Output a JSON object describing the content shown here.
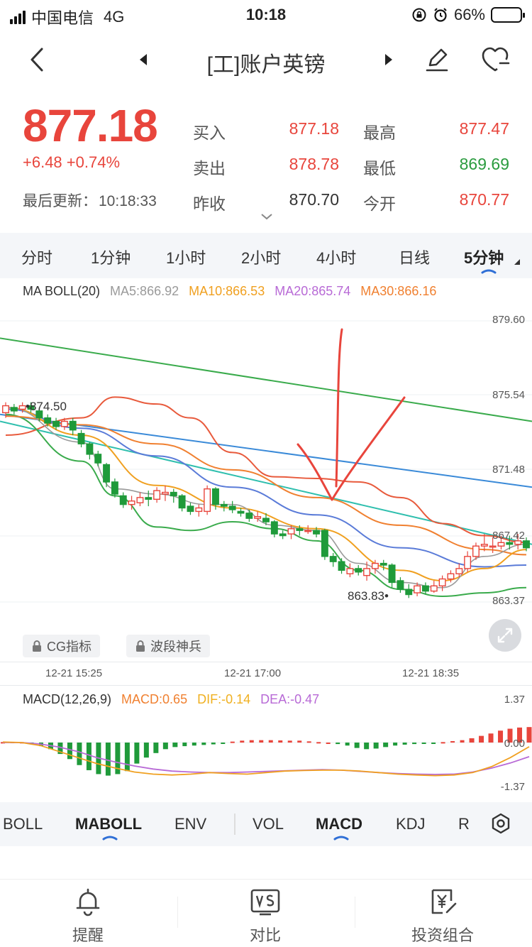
{
  "status": {
    "carrier": "中国电信",
    "network": "4G",
    "time": "10:18",
    "battery": "66%",
    "battery_level": 0.66
  },
  "nav": {
    "title": "[工]账户英镑"
  },
  "quote": {
    "price": "877.18",
    "change": "+6.48",
    "change_pct": "+0.74%",
    "updated_label": "最后更新：",
    "updated_time": "10:18:33",
    "buy_label": "买入",
    "buy": "877.18",
    "sell_label": "卖出",
    "sell": "878.78",
    "prev_close_label": "昨收",
    "prev_close": "870.70",
    "high_label": "最高",
    "high": "877.47",
    "low_label": "最低",
    "low": "869.69",
    "open_label": "今开",
    "open": "870.77"
  },
  "periods": [
    "分时",
    "1分钟",
    "1小时",
    "2小时",
    "4小时",
    "日线",
    "5分钟"
  ],
  "active_period": "5分钟",
  "main_indicator": {
    "name": "MA BOLL(20)",
    "ma5": "MA5:866.92",
    "ma10": "MA10:866.53",
    "ma20": "MA20:865.74",
    "ma30": "MA30:866.16"
  },
  "locked_indicators": [
    "CG指标",
    "波段神兵"
  ],
  "macd_indicator": {
    "name": "MACD(12,26,9)",
    "macd": "MACD:0.65",
    "dif": "DIF:-0.14",
    "dea": "DEA:-0.47"
  },
  "indicator_tabs": [
    "BOLL",
    "MABOLL",
    "ENV",
    "VOL",
    "MACD",
    "KDJ",
    "R"
  ],
  "active_tabs": [
    "MABOLL",
    "MACD"
  ],
  "bottom_nav": [
    "提醒",
    "对比",
    "投资组合"
  ],
  "chart_data": [
    {
      "type": "candlestick",
      "y_ticks": [
        "879.60",
        "875.54",
        "871.48",
        "867.42",
        "863.37"
      ],
      "x_ticks": [
        "12-21 15:25",
        "12-21 17:00",
        "12-21 18:35"
      ],
      "annotations": [
        "874.50",
        "863.83"
      ],
      "ylim": [
        863.37,
        879.6
      ],
      "colors": {
        "up": "#e8453c",
        "down": "#1f9a3a",
        "ma5": "#9a9a9a",
        "ma10": "#f0a020",
        "ma20": "#b86ad6",
        "ma30": "#f08030",
        "boll_upper": "#e85a3c",
        "boll_lower": "#3aab4c",
        "long_a": "#3aab4c",
        "long_b": "#3a8ad8",
        "long_c": "#2fbfae"
      },
      "candles": [
        {
          "o": 874.3,
          "c": 874.7,
          "h": 874.9,
          "l": 874.0
        },
        {
          "o": 874.6,
          "c": 874.4,
          "h": 874.8,
          "l": 874.2
        },
        {
          "o": 874.5,
          "c": 874.7,
          "h": 874.9,
          "l": 874.3
        },
        {
          "o": 874.7,
          "c": 874.5,
          "h": 874.9,
          "l": 874.3
        },
        {
          "o": 874.4,
          "c": 874.0,
          "h": 874.6,
          "l": 873.8
        },
        {
          "o": 874.0,
          "c": 873.7,
          "h": 874.2,
          "l": 873.5
        },
        {
          "o": 873.8,
          "c": 873.5,
          "h": 874.0,
          "l": 873.3
        },
        {
          "o": 873.5,
          "c": 873.8,
          "h": 874.0,
          "l": 873.3
        },
        {
          "o": 873.8,
          "c": 873.3,
          "h": 874.0,
          "l": 873.0
        },
        {
          "o": 873.1,
          "c": 872.5,
          "h": 873.3,
          "l": 872.3
        },
        {
          "o": 872.5,
          "c": 871.9,
          "h": 872.6,
          "l": 871.6
        },
        {
          "o": 871.9,
          "c": 871.4,
          "h": 872.1,
          "l": 871.2
        },
        {
          "o": 871.3,
          "c": 870.3,
          "h": 871.4,
          "l": 870.0
        },
        {
          "o": 870.3,
          "c": 869.6,
          "h": 870.5,
          "l": 869.4
        },
        {
          "o": 869.5,
          "c": 869.0,
          "h": 869.7,
          "l": 868.8
        },
        {
          "o": 869.0,
          "c": 869.2,
          "h": 869.5,
          "l": 868.7
        },
        {
          "o": 869.1,
          "c": 869.4,
          "h": 869.7,
          "l": 868.9
        },
        {
          "o": 869.4,
          "c": 869.3,
          "h": 869.8,
          "l": 868.9
        },
        {
          "o": 869.3,
          "c": 869.8,
          "h": 870.0,
          "l": 869.1
        },
        {
          "o": 869.6,
          "c": 869.7,
          "h": 870.1,
          "l": 869.2
        },
        {
          "o": 869.7,
          "c": 869.5,
          "h": 869.9,
          "l": 869.1
        },
        {
          "o": 869.5,
          "c": 868.8,
          "h": 869.6,
          "l": 868.6
        },
        {
          "o": 868.9,
          "c": 868.6,
          "h": 869.1,
          "l": 868.4
        },
        {
          "o": 868.6,
          "c": 868.8,
          "h": 869.0,
          "l": 868.3
        },
        {
          "o": 868.6,
          "c": 869.9,
          "h": 870.1,
          "l": 868.4
        },
        {
          "o": 869.9,
          "c": 869.0,
          "h": 870.0,
          "l": 868.7
        },
        {
          "o": 869.0,
          "c": 868.9,
          "h": 869.2,
          "l": 868.6
        },
        {
          "o": 868.9,
          "c": 868.7,
          "h": 869.2,
          "l": 868.5
        },
        {
          "o": 868.6,
          "c": 868.5,
          "h": 868.8,
          "l": 868.3
        },
        {
          "o": 868.5,
          "c": 868.2,
          "h": 868.7,
          "l": 868.0
        },
        {
          "o": 868.2,
          "c": 868.3,
          "h": 868.6,
          "l": 868.0
        },
        {
          "o": 868.2,
          "c": 868.0,
          "h": 868.5,
          "l": 867.8
        },
        {
          "o": 868.0,
          "c": 867.3,
          "h": 868.1,
          "l": 867.1
        },
        {
          "o": 867.3,
          "c": 867.2,
          "h": 867.5,
          "l": 867.0
        },
        {
          "o": 867.3,
          "c": 867.6,
          "h": 867.8,
          "l": 867.0
        },
        {
          "o": 867.6,
          "c": 867.5,
          "h": 867.8,
          "l": 867.2
        },
        {
          "o": 867.5,
          "c": 867.5,
          "h": 867.8,
          "l": 867.3
        },
        {
          "o": 867.5,
          "c": 867.3,
          "h": 867.7,
          "l": 867.1
        },
        {
          "o": 867.5,
          "c": 866.0,
          "h": 867.6,
          "l": 865.8
        },
        {
          "o": 866.0,
          "c": 865.7,
          "h": 866.2,
          "l": 865.4
        },
        {
          "o": 865.7,
          "c": 865.2,
          "h": 865.9,
          "l": 865.0
        },
        {
          "o": 865.0,
          "c": 865.3,
          "h": 865.6,
          "l": 864.8
        },
        {
          "o": 865.3,
          "c": 865.1,
          "h": 865.5,
          "l": 864.9
        },
        {
          "o": 864.9,
          "c": 865.3,
          "h": 865.7,
          "l": 864.6
        },
        {
          "o": 865.3,
          "c": 865.6,
          "h": 865.8,
          "l": 865.0
        },
        {
          "o": 865.6,
          "c": 865.5,
          "h": 865.8,
          "l": 865.2
        },
        {
          "o": 865.5,
          "c": 864.5,
          "h": 865.6,
          "l": 864.2
        },
        {
          "o": 864.6,
          "c": 864.1,
          "h": 864.8,
          "l": 863.9
        },
        {
          "o": 864.1,
          "c": 863.8,
          "h": 864.4,
          "l": 863.6
        },
        {
          "o": 863.9,
          "c": 864.3,
          "h": 864.5,
          "l": 863.7
        },
        {
          "o": 864.3,
          "c": 864.0,
          "h": 864.5,
          "l": 863.8
        },
        {
          "o": 864.0,
          "c": 864.3,
          "h": 864.6,
          "l": 863.9
        },
        {
          "o": 864.3,
          "c": 864.7,
          "h": 864.9,
          "l": 864.0
        },
        {
          "o": 864.7,
          "c": 865.0,
          "h": 865.2,
          "l": 864.5
        },
        {
          "o": 865.0,
          "c": 865.3,
          "h": 865.6,
          "l": 864.8
        },
        {
          "o": 865.3,
          "c": 866.0,
          "h": 866.3,
          "l": 865.1
        },
        {
          "o": 866.0,
          "c": 866.6,
          "h": 866.8,
          "l": 865.8
        },
        {
          "o": 866.6,
          "c": 866.7,
          "h": 867.3,
          "l": 866.3
        },
        {
          "o": 866.6,
          "c": 866.6,
          "h": 867.1,
          "l": 866.2
        },
        {
          "o": 866.6,
          "c": 866.8,
          "h": 867.2,
          "l": 866.4
        },
        {
          "o": 866.8,
          "c": 866.7,
          "h": 867.2,
          "l": 866.4
        },
        {
          "o": 866.7,
          "c": 866.9,
          "h": 867.3,
          "l": 866.4
        },
        {
          "o": 866.9,
          "c": 866.5,
          "h": 867.1,
          "l": 866.3
        }
      ],
      "lines": {
        "long_a": [
          878.6,
          873.8
        ],
        "long_b": [
          874.2,
          870.0
        ],
        "long_c": [
          873.8,
          866.7
        ],
        "boll_upper": [
          [
            0,
            873.0
          ],
          [
            9,
            874.0
          ],
          [
            13,
            875.2
          ],
          [
            18,
            874.8
          ],
          [
            22,
            874.0
          ],
          [
            27,
            872.0
          ],
          [
            32,
            870.6
          ],
          [
            37,
            870.5
          ],
          [
            42,
            870.3
          ],
          [
            47,
            869.4
          ],
          [
            52,
            867.9
          ],
          [
            57,
            867.2
          ],
          [
            62,
            866.8
          ]
        ],
        "boll_lower": [
          [
            0,
            874.2
          ],
          [
            9,
            871.5
          ],
          [
            13,
            869.5
          ],
          [
            18,
            867.7
          ],
          [
            22,
            867.5
          ],
          [
            27,
            868.0
          ],
          [
            32,
            867.6
          ],
          [
            37,
            866.9
          ],
          [
            42,
            865.2
          ],
          [
            47,
            864.1
          ],
          [
            52,
            863.7
          ],
          [
            57,
            863.9
          ],
          [
            62,
            864.2
          ]
        ],
        "ma30": [
          [
            0,
            874.1
          ],
          [
            9,
            873.6
          ],
          [
            18,
            872.5
          ],
          [
            27,
            871.0
          ],
          [
            37,
            869.4
          ],
          [
            47,
            867.8
          ],
          [
            57,
            866.4
          ],
          [
            62,
            866.1
          ]
        ],
        "ma20": [
          [
            0,
            874.5
          ],
          [
            9,
            873.4
          ],
          [
            18,
            871.8
          ],
          [
            27,
            870.0
          ],
          [
            37,
            868.4
          ],
          [
            47,
            866.5
          ],
          [
            57,
            865.4
          ],
          [
            62,
            865.5
          ]
        ],
        "ma10": [
          [
            0,
            874.6
          ],
          [
            9,
            873.0
          ],
          [
            18,
            870.1
          ],
          [
            27,
            868.8
          ],
          [
            37,
            867.6
          ],
          [
            47,
            865.2
          ],
          [
            52,
            864.6
          ],
          [
            57,
            865.3
          ],
          [
            62,
            866.4
          ]
        ],
        "ma5": [
          [
            0,
            874.6
          ],
          [
            9,
            872.6
          ],
          [
            13,
            869.9
          ],
          [
            18,
            869.6
          ],
          [
            24,
            869.0
          ],
          [
            27,
            869.0
          ],
          [
            32,
            867.8
          ],
          [
            37,
            867.5
          ],
          [
            42,
            865.6
          ],
          [
            47,
            864.5
          ],
          [
            52,
            864.2
          ],
          [
            57,
            866.0
          ],
          [
            62,
            866.7
          ]
        ]
      }
    },
    {
      "type": "bar",
      "title": "MACD(12,26,9)",
      "y_ticks": [
        "1.37",
        "0.00",
        "-1.37"
      ],
      "ylim": [
        -1.37,
        1.37
      ],
      "histogram": [
        0.02,
        0.03,
        0.02,
        -0.05,
        -0.12,
        -0.22,
        -0.38,
        -0.55,
        -0.75,
        -0.92,
        -1.05,
        -1.1,
        -1.05,
        -0.95,
        -0.7,
        -0.5,
        -0.35,
        -0.22,
        -0.15,
        -0.12,
        -0.1,
        -0.08,
        -0.06,
        -0.02,
        0.04,
        0.08,
        0.1,
        0.1,
        0.1,
        0.09,
        0.08,
        0.08,
        0.05,
        0.02,
        0.0,
        -0.05,
        -0.1,
        -0.18,
        -0.22,
        -0.2,
        -0.15,
        -0.1,
        -0.07,
        -0.05,
        -0.04,
        -0.02,
        0.02,
        0.06,
        0.1,
        0.18,
        0.28,
        0.38,
        0.5,
        0.58,
        0.63,
        0.65
      ],
      "dif": [
        0.02,
        0.0,
        -0.1,
        -0.3,
        -0.5,
        -0.7,
        -0.85,
        -0.98,
        -1.05,
        -1.08,
        -1.05,
        -1.0,
        -1.03,
        -1.05,
        -1.0,
        -0.95,
        -0.93,
        -0.92,
        -0.92,
        -0.95,
        -1.0,
        -1.05,
        -1.08,
        -1.1,
        -1.08,
        -1.0,
        -0.8,
        -0.5,
        -0.14
      ],
      "dea": [
        0.0,
        0.0,
        -0.05,
        -0.15,
        -0.3,
        -0.5,
        -0.65,
        -0.78,
        -0.88,
        -0.95,
        -0.98,
        -1.0,
        -1.0,
        -0.98,
        -0.96,
        -0.94,
        -0.92,
        -0.9,
        -0.92,
        -0.96,
        -1.0,
        -1.03,
        -1.05,
        -1.06,
        -1.05,
        -0.98,
        -0.85,
        -0.68,
        -0.47
      ]
    }
  ]
}
